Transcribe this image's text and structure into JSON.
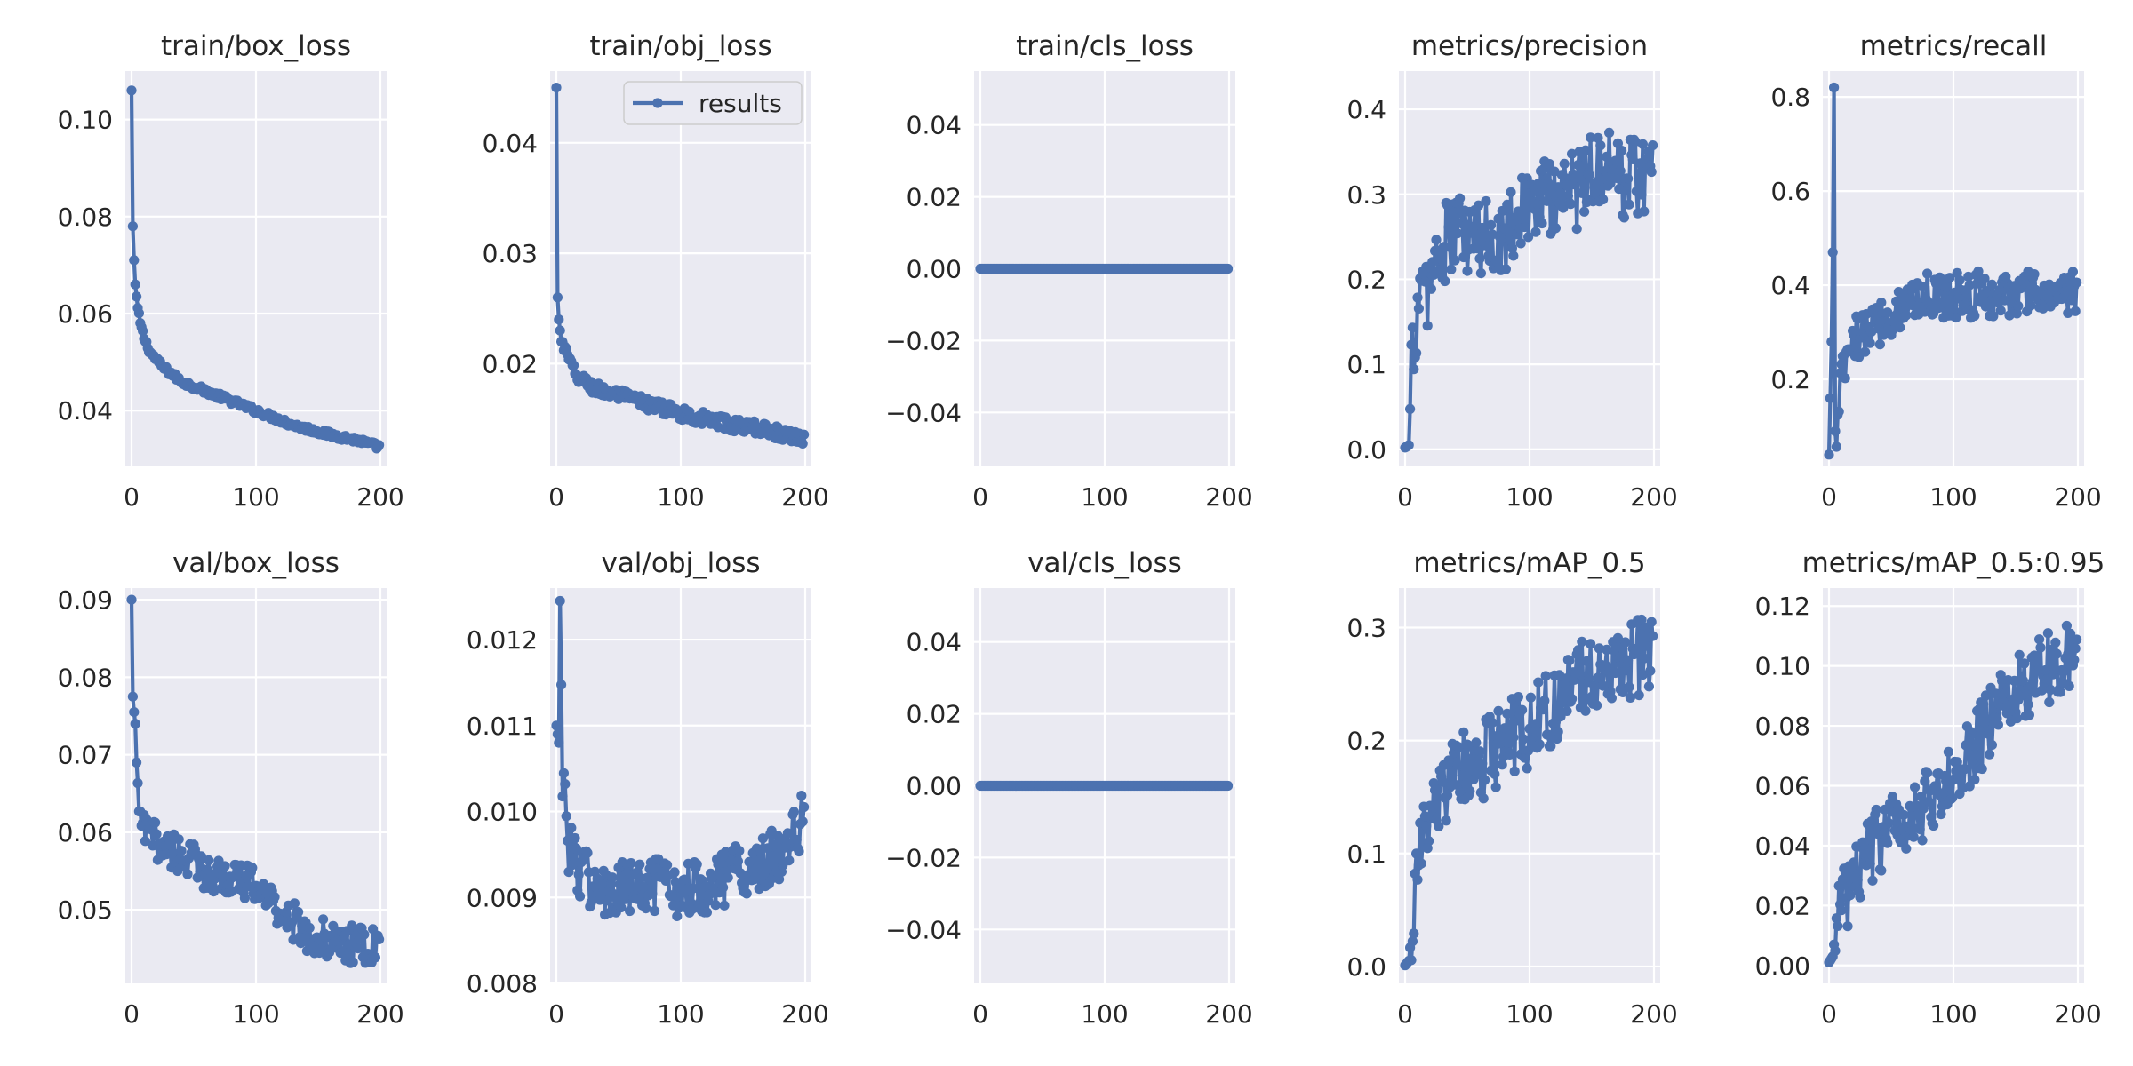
{
  "figure": {
    "series_color": "#4c72b0",
    "background": "#eaeaf2",
    "legend_label": "results"
  },
  "chart_data": [
    {
      "type": "line",
      "title": "train/box_loss",
      "xlim": [
        -5,
        205
      ],
      "ylim": [
        0.0285,
        0.11
      ],
      "xticks": [
        0,
        100,
        200
      ],
      "yticks": [
        0.04,
        0.06,
        0.08,
        0.1
      ],
      "legend": false,
      "grid": true,
      "keypoints": [
        [
          0,
          0.106
        ],
        [
          1,
          0.078
        ],
        [
          2,
          0.071
        ],
        [
          3,
          0.066
        ],
        [
          5,
          0.061
        ],
        [
          7,
          0.058
        ],
        [
          10,
          0.055
        ],
        [
          15,
          0.052
        ],
        [
          25,
          0.049
        ],
        [
          40,
          0.046
        ],
        [
          60,
          0.044
        ],
        [
          80,
          0.042
        ],
        [
          100,
          0.04
        ],
        [
          130,
          0.037
        ],
        [
          160,
          0.035
        ],
        [
          180,
          0.034
        ],
        [
          199,
          0.0325
        ]
      ],
      "noise": 0.0006
    },
    {
      "type": "line",
      "title": "train/obj_loss",
      "xlim": [
        -5,
        205
      ],
      "ylim": [
        0.0107,
        0.0465
      ],
      "xticks": [
        0,
        100,
        200
      ],
      "yticks": [
        0.02,
        0.03,
        0.04
      ],
      "legend": true,
      "grid": true,
      "keypoints": [
        [
          0,
          0.045
        ],
        [
          1,
          0.026
        ],
        [
          2,
          0.024
        ],
        [
          4,
          0.022
        ],
        [
          8,
          0.021
        ],
        [
          15,
          0.019
        ],
        [
          30,
          0.0178
        ],
        [
          60,
          0.0168
        ],
        [
          100,
          0.0155
        ],
        [
          140,
          0.0145
        ],
        [
          170,
          0.014
        ],
        [
          199,
          0.0132
        ]
      ],
      "noise": 0.0006
    },
    {
      "type": "line",
      "title": "train/cls_loss",
      "xlim": [
        -5,
        205
      ],
      "ylim": [
        -0.055,
        0.055
      ],
      "xticks": [
        0,
        100,
        200
      ],
      "yticks": [
        -0.04,
        -0.02,
        0.0,
        0.02,
        0.04
      ],
      "legend": false,
      "grid": true,
      "keypoints": [
        [
          0,
          0
        ],
        [
          199,
          0
        ]
      ],
      "noise": 0
    },
    {
      "type": "line",
      "title": "metrics/precision",
      "xlim": [
        -5,
        205
      ],
      "ylim": [
        -0.02,
        0.445
      ],
      "xticks": [
        0,
        100,
        200
      ],
      "yticks": [
        0.0,
        0.1,
        0.2,
        0.3,
        0.4
      ],
      "legend": false,
      "grid": true,
      "keypoints": [
        [
          0,
          0.002
        ],
        [
          3,
          0.005
        ],
        [
          5,
          0.09
        ],
        [
          8,
          0.15
        ],
        [
          15,
          0.18
        ],
        [
          25,
          0.22
        ],
        [
          40,
          0.26
        ],
        [
          60,
          0.24
        ],
        [
          80,
          0.26
        ],
        [
          100,
          0.29
        ],
        [
          120,
          0.3
        ],
        [
          140,
          0.31
        ],
        [
          155,
          0.34
        ],
        [
          170,
          0.32
        ],
        [
          199,
          0.33
        ]
      ],
      "noise": 0.05
    },
    {
      "type": "line",
      "title": "metrics/recall",
      "xlim": [
        -5,
        205
      ],
      "ylim": [
        0.015,
        0.855
      ],
      "xticks": [
        0,
        100,
        200
      ],
      "yticks": [
        0.2,
        0.4,
        0.6,
        0.8
      ],
      "legend": false,
      "grid": true,
      "keypoints": [
        [
          0,
          0.04
        ],
        [
          2,
          0.28
        ],
        [
          3,
          0.47
        ],
        [
          4,
          0.82
        ],
        [
          5,
          0.05
        ],
        [
          7,
          0.14
        ],
        [
          10,
          0.2
        ],
        [
          20,
          0.28
        ],
        [
          40,
          0.32
        ],
        [
          60,
          0.36
        ],
        [
          80,
          0.38
        ],
        [
          100,
          0.38
        ],
        [
          130,
          0.38
        ],
        [
          160,
          0.38
        ],
        [
          199,
          0.38
        ]
      ],
      "noise": 0.05
    },
    {
      "type": "line",
      "title": "val/box_loss",
      "xlim": [
        -5,
        205
      ],
      "ylim": [
        0.0405,
        0.0915
      ],
      "xticks": [
        0,
        100,
        200
      ],
      "yticks": [
        0.05,
        0.06,
        0.07,
        0.08,
        0.09
      ],
      "legend": false,
      "grid": true,
      "keypoints": [
        [
          0,
          0.09
        ],
        [
          1,
          0.0775
        ],
        [
          2,
          0.0755
        ],
        [
          3,
          0.074
        ],
        [
          5,
          0.064
        ],
        [
          10,
          0.06
        ],
        [
          20,
          0.059
        ],
        [
          40,
          0.057
        ],
        [
          60,
          0.055
        ],
        [
          80,
          0.054
        ],
        [
          100,
          0.053
        ],
        [
          120,
          0.05
        ],
        [
          140,
          0.047
        ],
        [
          160,
          0.046
        ],
        [
          180,
          0.0455
        ],
        [
          199,
          0.045
        ]
      ],
      "noise": 0.0025
    },
    {
      "type": "line",
      "title": "val/obj_loss",
      "xlim": [
        -5,
        205
      ],
      "ylim": [
        0.008,
        0.0126
      ],
      "xticks": [
        0,
        100,
        200
      ],
      "yticks": [
        0.008,
        0.009,
        0.01,
        0.011,
        0.012
      ],
      "legend": false,
      "grid": true,
      "keypoints": [
        [
          0,
          0.011
        ],
        [
          2,
          0.0108
        ],
        [
          3,
          0.01245
        ],
        [
          5,
          0.0105
        ],
        [
          10,
          0.0096
        ],
        [
          20,
          0.0093
        ],
        [
          40,
          0.009
        ],
        [
          60,
          0.0091
        ],
        [
          80,
          0.0091
        ],
        [
          100,
          0.0091
        ],
        [
          130,
          0.0092
        ],
        [
          160,
          0.0094
        ],
        [
          180,
          0.0095
        ],
        [
          199,
          0.0099
        ]
      ],
      "noise": 0.00035
    },
    {
      "type": "line",
      "title": "val/cls_loss",
      "xlim": [
        -5,
        205
      ],
      "ylim": [
        -0.055,
        0.055
      ],
      "xticks": [
        0,
        100,
        200
      ],
      "yticks": [
        -0.04,
        -0.02,
        0.0,
        0.02,
        0.04
      ],
      "legend": false,
      "grid": true,
      "keypoints": [
        [
          0,
          0
        ],
        [
          199,
          0
        ]
      ],
      "noise": 0
    },
    {
      "type": "line",
      "title": "metrics/mAP_0.5",
      "xlim": [
        -5,
        205
      ],
      "ylim": [
        -0.015,
        0.335
      ],
      "xticks": [
        0,
        100,
        200
      ],
      "yticks": [
        0.0,
        0.1,
        0.2,
        0.3
      ],
      "legend": false,
      "grid": true,
      "keypoints": [
        [
          0,
          0.001
        ],
        [
          3,
          0.005
        ],
        [
          6,
          0.04
        ],
        [
          10,
          0.09
        ],
        [
          20,
          0.13
        ],
        [
          40,
          0.17
        ],
        [
          60,
          0.18
        ],
        [
          80,
          0.2
        ],
        [
          100,
          0.21
        ],
        [
          120,
          0.23
        ],
        [
          140,
          0.26
        ],
        [
          160,
          0.26
        ],
        [
          180,
          0.27
        ],
        [
          199,
          0.28
        ]
      ],
      "noise": 0.035
    },
    {
      "type": "line",
      "title": "metrics/mAP_0.5:0.95",
      "xlim": [
        -5,
        205
      ],
      "ylim": [
        -0.006,
        0.126
      ],
      "xticks": [
        0,
        100,
        200
      ],
      "yticks": [
        0.0,
        0.02,
        0.04,
        0.06,
        0.08,
        0.1,
        0.12
      ],
      "legend": false,
      "grid": true,
      "keypoints": [
        [
          0,
          0.001
        ],
        [
          3,
          0.003
        ],
        [
          6,
          0.015
        ],
        [
          10,
          0.02
        ],
        [
          20,
          0.03
        ],
        [
          40,
          0.042
        ],
        [
          60,
          0.05
        ],
        [
          80,
          0.055
        ],
        [
          100,
          0.062
        ],
        [
          120,
          0.075
        ],
        [
          140,
          0.088
        ],
        [
          160,
          0.095
        ],
        [
          180,
          0.1
        ],
        [
          199,
          0.105
        ]
      ],
      "noise": 0.012
    }
  ]
}
